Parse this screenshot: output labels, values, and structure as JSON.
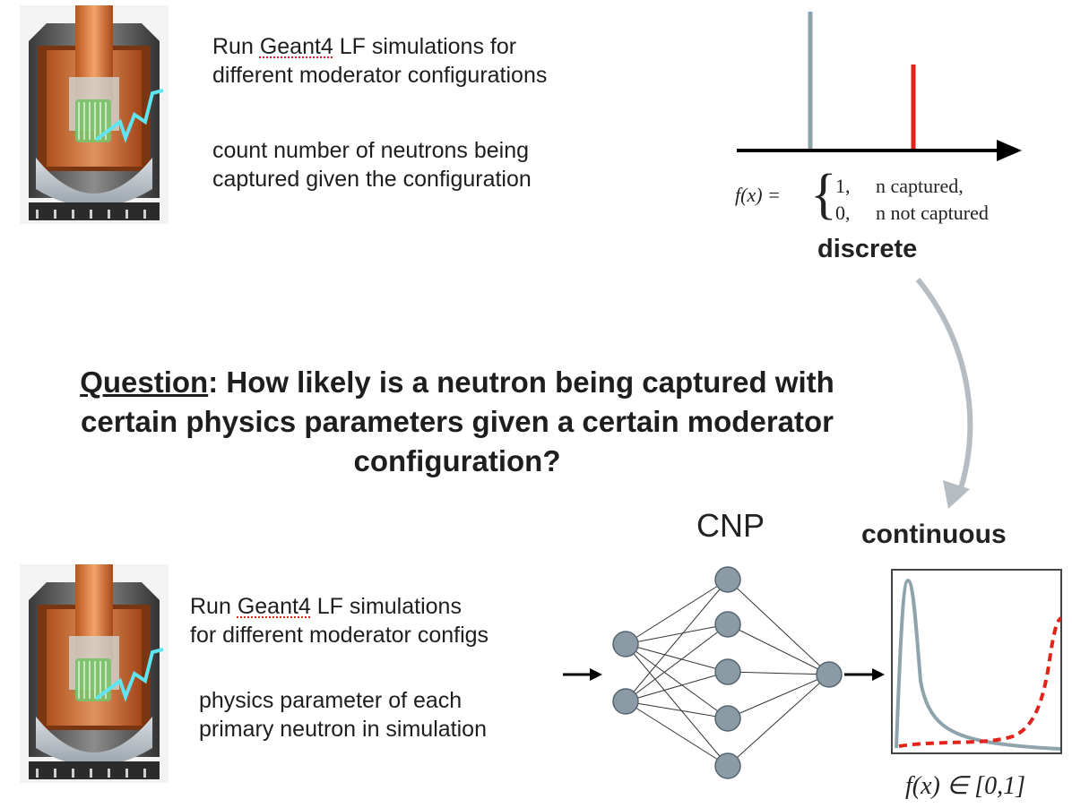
{
  "top": {
    "run_pre": "Run ",
    "run_word": "Geant4",
    "run_post": " LF simulations for",
    "run_line2": "different moderator configurations",
    "count_line1": "count number of neutrons being",
    "count_line2": "captured given the configuration"
  },
  "formula": {
    "lhs": "f(x) =",
    "case1_val": "1,",
    "case1_text": "n captured,",
    "case2_val": "0,",
    "case2_text": "n not captured"
  },
  "discrete_label": "discrete",
  "question": {
    "prefix": "Question",
    "line1": ": How likely is a neutron being captured with",
    "line2": "certain physics parameters given a certain moderator",
    "line3": "configuration?"
  },
  "bottom": {
    "run_pre": "Run ",
    "run_word": "Geant4",
    "run_post": " LF simulations",
    "run_line2": "for different moderator configs",
    "phys_line1": "physics parameter of each",
    "phys_line2": "primary neutron in simulation"
  },
  "cnp_label": "CNP",
  "continuous_label": "continuous",
  "range_label": "f(x) ∈ [0,1]",
  "colors": {
    "gray_line": "#8fa3ad",
    "red": "#e2231a",
    "node": "#8a9ba6",
    "arrow_gray": "#b5bcc2"
  }
}
